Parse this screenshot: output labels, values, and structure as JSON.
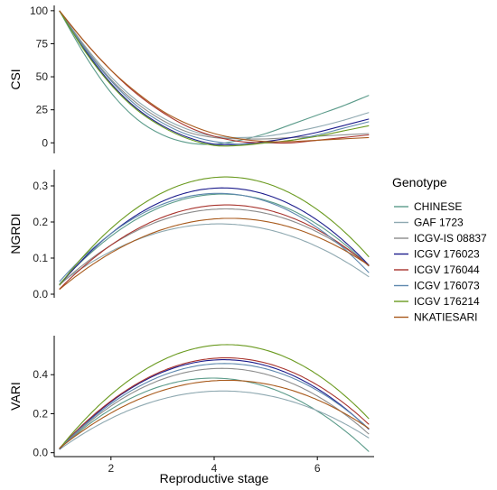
{
  "chart_data": [
    {
      "type": "line",
      "panel": "top",
      "ylabel": "CSI",
      "xlabel": "",
      "xlim": [
        0.9,
        7.1
      ],
      "ylim": [
        -8,
        104
      ],
      "yticks": [
        0,
        25,
        50,
        75,
        100
      ],
      "xticks": [],
      "x": [
        1,
        1.5,
        2,
        2.5,
        3,
        3.5,
        4,
        4.5,
        5,
        5.5,
        6,
        6.5,
        7
      ],
      "series": [
        {
          "name": "CHINESE",
          "values": [
            100,
            66,
            38,
            18,
            6,
            0,
            -1,
            2,
            7,
            14,
            21,
            28,
            36
          ]
        },
        {
          "name": "GAF 1723",
          "values": [
            100,
            73,
            50,
            32,
            19,
            10,
            5,
            4,
            5,
            8,
            12,
            17,
            23
          ]
        },
        {
          "name": "ICGV-IS 08837",
          "values": [
            100,
            72,
            48,
            30,
            17,
            8,
            4,
            3,
            3,
            4,
            5,
            6,
            7
          ]
        },
        {
          "name": "ICGV 176023",
          "values": [
            100,
            70,
            45,
            26,
            13,
            4,
            -1,
            -1,
            1,
            4,
            8,
            13,
            18
          ]
        },
        {
          "name": "ICGV 176044",
          "values": [
            100,
            76,
            55,
            37,
            23,
            12,
            5,
            1,
            0,
            0,
            2,
            4,
            6
          ]
        },
        {
          "name": "ICGV 176073",
          "values": [
            100,
            71,
            47,
            28,
            15,
            6,
            1,
            -1,
            0,
            2,
            6,
            11,
            16
          ]
        },
        {
          "name": "ICGV 176214",
          "values": [
            100,
            69,
            44,
            25,
            12,
            3,
            -2,
            -2,
            0,
            2,
            5,
            9,
            13
          ]
        },
        {
          "name": "NKATIESARI",
          "values": [
            100,
            76,
            55,
            38,
            24,
            14,
            7,
            3,
            1,
            1,
            2,
            3,
            4
          ]
        }
      ]
    },
    {
      "type": "line",
      "panel": "middle",
      "ylabel": "NGRDI",
      "xlabel": "",
      "xlim": [
        0.9,
        7.1
      ],
      "ylim": [
        -0.01,
        0.345
      ],
      "yticks": [
        "0.0",
        "0.1",
        "0.2",
        "0.3"
      ],
      "xticks": [],
      "series": [
        {
          "name": "CHINESE",
          "quad": {
            "a": -0.0249,
            "b": 0.2075,
            "c": -0.155
          }
        },
        {
          "name": "GAF 1723",
          "quad": {
            "a": -0.0174,
            "b": 0.1425,
            "c": -0.097
          }
        },
        {
          "name": "ICGV-IS 08837",
          "quad": {
            "a": -0.0203,
            "b": 0.1715,
            "c": -0.126
          }
        },
        {
          "name": "ICGV 176023",
          "quad": {
            "a": -0.0268,
            "b": 0.2236,
            "c": -0.172
          }
        },
        {
          "name": "ICGV 176044",
          "quad": {
            "a": -0.0222,
            "b": 0.1883,
            "c": -0.152
          }
        },
        {
          "name": "ICGV 176073",
          "quad": {
            "a": -0.0258,
            "b": 0.2105,
            "c": -0.15
          }
        },
        {
          "name": "ICGV 176214",
          "quad": {
            "a": -0.0288,
            "b": 0.2435,
            "c": -0.19
          }
        },
        {
          "name": "NKATIESARI",
          "quad": {
            "a": -0.018,
            "b": 0.1551,
            "c": -0.124
          }
        }
      ]
    },
    {
      "type": "line",
      "panel": "bottom",
      "ylabel": "VARI",
      "xlabel": "Reproductive stage",
      "xlim": [
        0.9,
        7.1
      ],
      "ylim": [
        -0.02,
        0.6
      ],
      "yticks": [
        "0.0",
        "0.2",
        "0.4"
      ],
      "xticks": [
        2,
        4,
        6
      ],
      "series": [
        {
          "name": "CHINESE",
          "quad": {
            "a": -0.0411,
            "b": 0.3265,
            "c": -0.266
          }
        },
        {
          "name": "GAF 1723",
          "quad": {
            "a": -0.03,
            "b": 0.2499,
            "c": -0.204
          }
        },
        {
          "name": "ICGV-IS 08837",
          "quad": {
            "a": -0.0416,
            "b": 0.3455,
            "c": -0.285
          }
        },
        {
          "name": "ICGV 176023",
          "quad": {
            "a": -0.0452,
            "b": 0.3786,
            "c": -0.316
          }
        },
        {
          "name": "ICGV 176044",
          "quad": {
            "a": -0.0445,
            "b": 0.3765,
            "c": -0.31
          }
        },
        {
          "name": "ICGV 176073",
          "quad": {
            "a": -0.0427,
            "b": 0.3587,
            "c": -0.296
          }
        },
        {
          "name": "ICGV 176214",
          "quad": {
            "a": -0.0504,
            "b": 0.4288,
            "c": -0.358
          }
        },
        {
          "name": "NKATIESARI",
          "quad": {
            "a": -0.0329,
            "b": 0.2801,
            "c": -0.225
          }
        }
      ]
    }
  ],
  "legend": {
    "title": "Genotype",
    "placement": "right",
    "entries": [
      {
        "name": "CHINESE",
        "color": "#5b9b8a"
      },
      {
        "name": "GAF 1723",
        "color": "#8ea8b0"
      },
      {
        "name": "ICGV-IS 08837",
        "color": "#8c8c8c"
      },
      {
        "name": "ICGV 176023",
        "color": "#1c1c8c"
      },
      {
        "name": "ICGV 176044",
        "color": "#a8342e"
      },
      {
        "name": "ICGV 176073",
        "color": "#5e88ae"
      },
      {
        "name": "ICGV 176214",
        "color": "#6a9a1f"
      },
      {
        "name": "NKATIESARI",
        "color": "#a85a1c"
      }
    ]
  }
}
